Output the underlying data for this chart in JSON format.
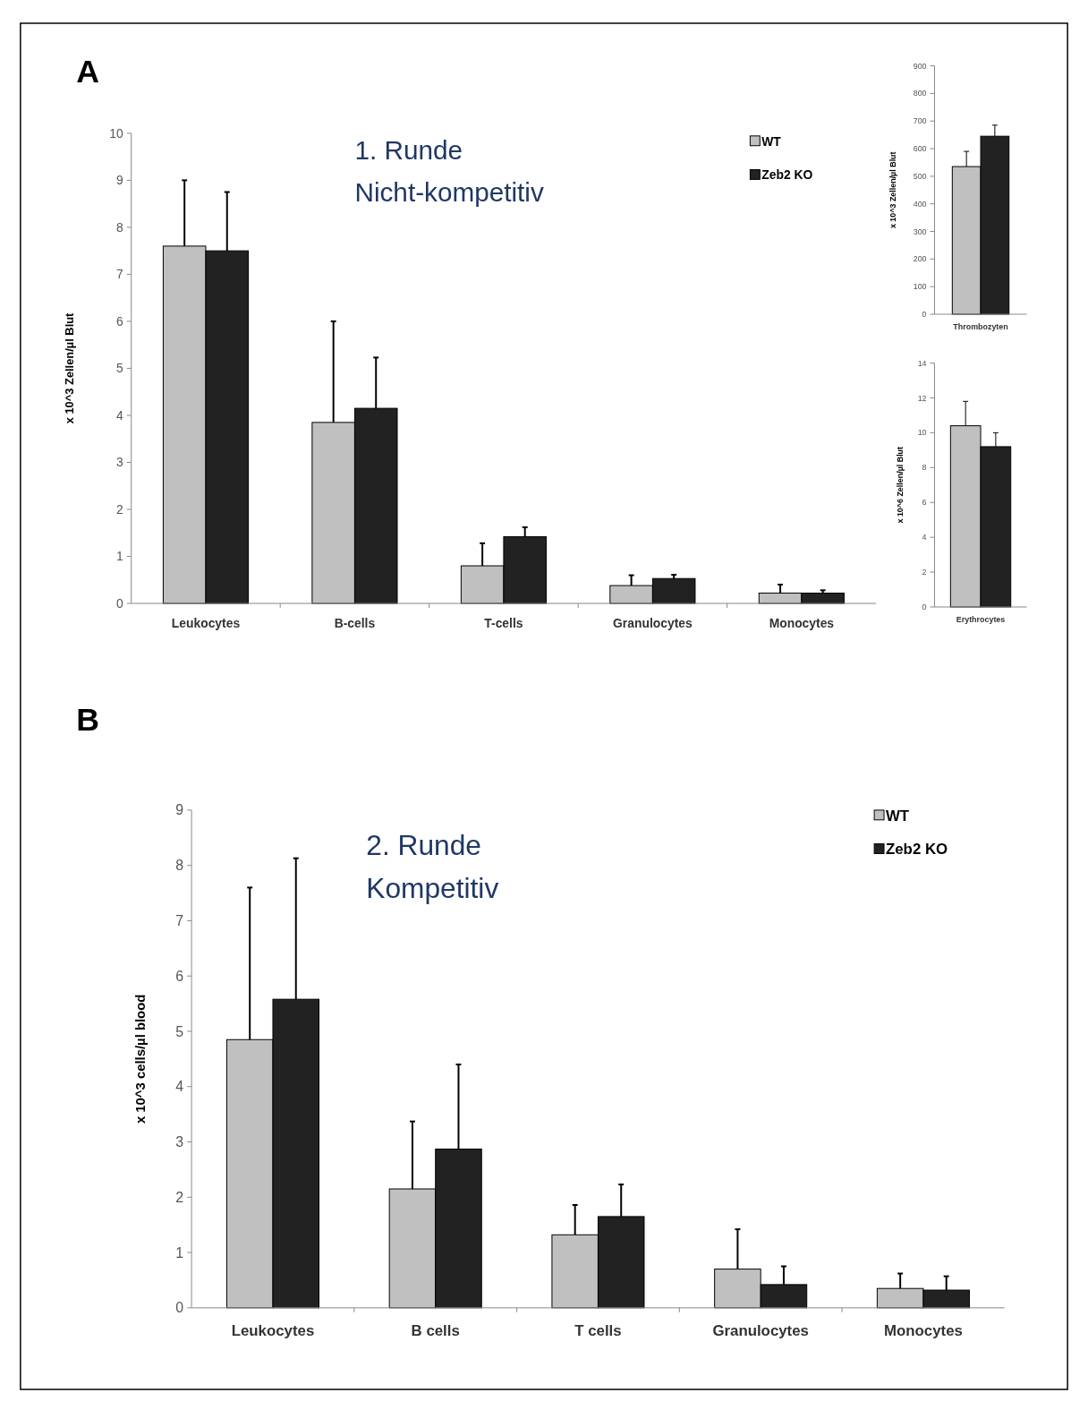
{
  "chart_data": [
    {
      "type": "bar",
      "categories": [
        "Leukocytes",
        "B-cells",
        "T-cells",
        "Granulocytes",
        "Monocytes"
      ],
      "ylabel": "x 10^3 Zellen/µl Blut",
      "ylim": [
        0,
        10
      ],
      "yticks": [
        0,
        1,
        2,
        3,
        4,
        5,
        6,
        7,
        8,
        9,
        10
      ],
      "legend": "top right",
      "grid": false,
      "annotations": [
        "A",
        "1. Runde",
        "Nicht-kompetitiv"
      ],
      "series": [
        {
          "name": "WT",
          "color": "#c0c0c0",
          "values": [
            7.6,
            3.85,
            0.8,
            0.38,
            0.22
          ],
          "errors": [
            [
              7.6,
              9.0
            ],
            [
              3.85,
              6.0
            ],
            [
              0.8,
              1.28
            ],
            [
              0.38,
              0.6
            ],
            [
              0.22,
              0.4
            ]
          ]
        },
        {
          "name": "Zeb2 KO",
          "color": "#222222",
          "values": [
            7.5,
            4.15,
            1.42,
            0.53,
            0.22
          ],
          "errors": [
            [
              7.5,
              8.75
            ],
            [
              4.15,
              5.23
            ],
            [
              1.42,
              1.62
            ],
            [
              0.53,
              0.61
            ],
            [
              0.22,
              0.28
            ]
          ]
        }
      ]
    },
    {
      "type": "bar",
      "categories": [
        "Thrombozyten"
      ],
      "ylabel": "x 10^3 Zellen/µl Blut",
      "ylim": [
        0,
        900
      ],
      "yticks": [
        0,
        100,
        200,
        300,
        400,
        500,
        600,
        700,
        800,
        900
      ],
      "legend": false,
      "grid": false,
      "series": [
        {
          "color": "#c0c0c0",
          "values": [
            535
          ],
          "errors": [
            [
              535,
              590
            ]
          ]
        },
        {
          "color": "#222222",
          "values": [
            645
          ],
          "errors": [
            [
              645,
              685
            ]
          ]
        }
      ]
    },
    {
      "type": "bar",
      "categories": [
        "Erythrocytes"
      ],
      "ylabel": "x 10^6 Zellen/µl Blut",
      "ylim": [
        0,
        14
      ],
      "yticks": [
        0,
        2,
        4,
        6,
        8,
        10,
        12,
        14
      ],
      "legend": false,
      "grid": false,
      "series": [
        {
          "color": "#c0c0c0",
          "values": [
            10.4
          ],
          "errors": [
            [
              10.4,
              11.8
            ]
          ]
        },
        {
          "color": "#222222",
          "values": [
            9.2
          ],
          "errors": [
            [
              9.2,
              10.0
            ]
          ]
        }
      ]
    },
    {
      "type": "bar",
      "categories": [
        "Leukocytes",
        "B cells",
        "T cells",
        "Granulocytes",
        "Monocytes"
      ],
      "ylabel": "x 10^3 cells/µl blood",
      "ylim": [
        0,
        9
      ],
      "yticks": [
        0,
        1,
        2,
        3,
        4,
        5,
        6,
        7,
        8,
        9
      ],
      "legend": "top right",
      "grid": false,
      "annotations": [
        "B",
        "2. Runde",
        "Kompetitiv"
      ],
      "series": [
        {
          "name": "WT",
          "color": "#c0c0c0",
          "values": [
            4.85,
            2.15,
            1.32,
            0.7,
            0.35
          ],
          "errors": [
            [
              4.85,
              7.6
            ],
            [
              2.15,
              3.37
            ],
            [
              1.32,
              1.86
            ],
            [
              0.7,
              1.42
            ],
            [
              0.35,
              0.62
            ]
          ]
        },
        {
          "name": "Zeb2 KO",
          "color": "#222222",
          "values": [
            5.58,
            2.87,
            1.65,
            0.42,
            0.32
          ],
          "errors": [
            [
              5.58,
              8.13
            ],
            [
              2.87,
              4.4
            ],
            [
              1.65,
              2.23
            ],
            [
              0.42,
              0.75
            ],
            [
              0.32,
              0.57
            ]
          ]
        }
      ]
    }
  ]
}
